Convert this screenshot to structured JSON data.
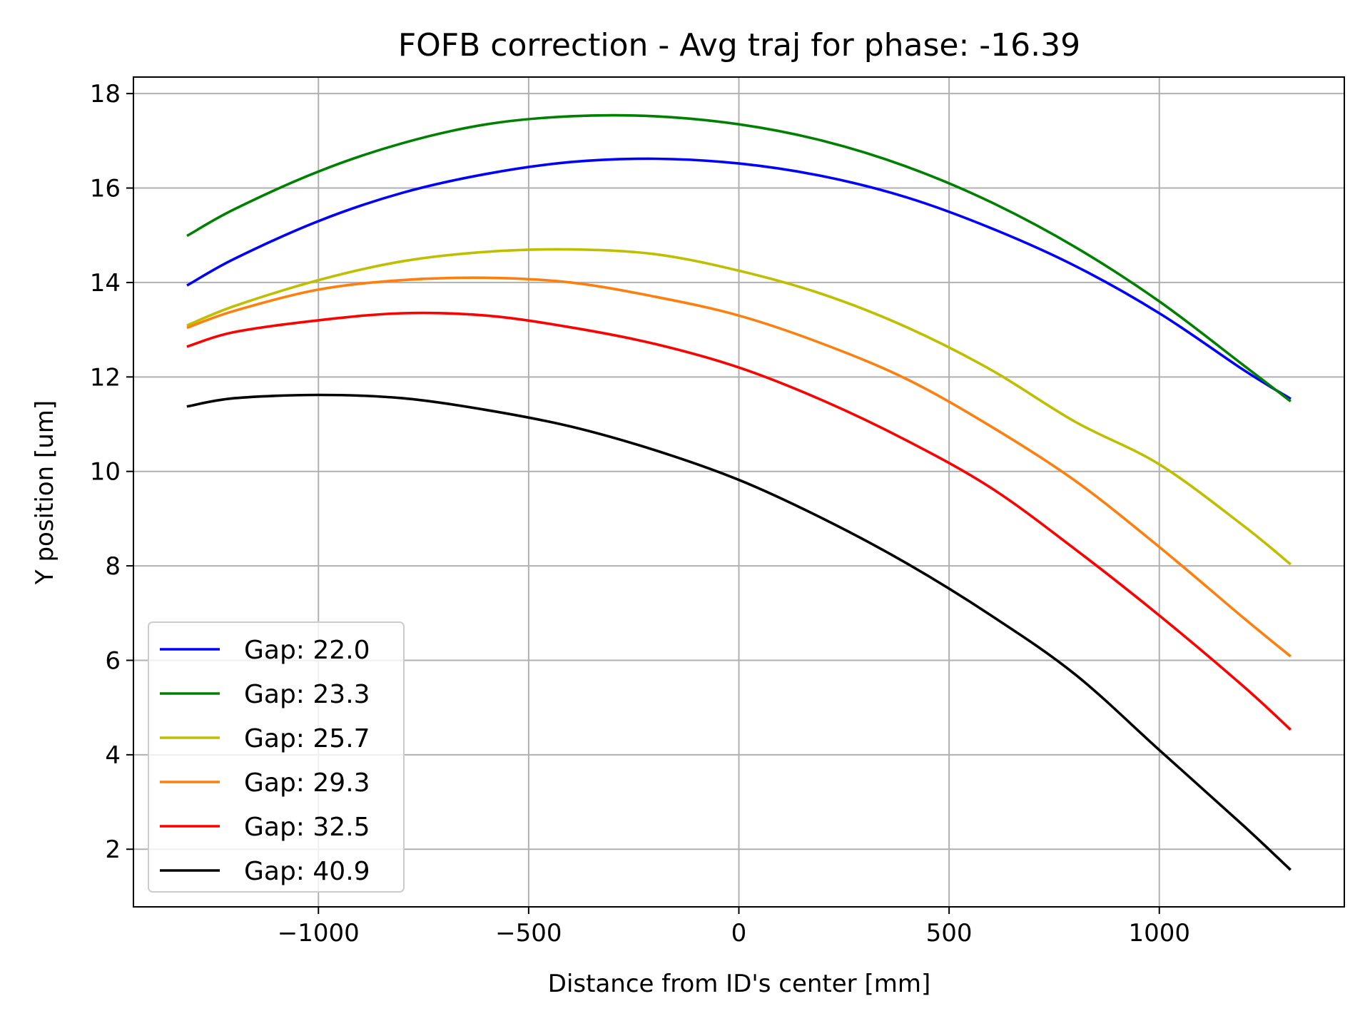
{
  "chart_data": {
    "type": "line",
    "title": "FOFB correction - Avg traj for phase: -16.39",
    "xlabel": "Distance from ID's center [mm]",
    "ylabel": "Y position [um]",
    "xlim": [
      -1440,
      1440
    ],
    "ylim": [
      0.78,
      18.35
    ],
    "xticks": [
      -1000,
      -500,
      0,
      500,
      1000
    ],
    "xtick_labels": [
      "−1000",
      "−500",
      "0",
      "500",
      "1000"
    ],
    "yticks": [
      2,
      4,
      6,
      8,
      10,
      12,
      14,
      16,
      18
    ],
    "ytick_labels": [
      "2",
      "4",
      "6",
      "8",
      "10",
      "12",
      "14",
      "16",
      "18"
    ],
    "grid": true,
    "legend_position": "lower-left",
    "x": [
      -1310,
      -1200,
      -1000,
      -800,
      -600,
      -400,
      -200,
      0,
      200,
      400,
      600,
      800,
      1000,
      1200,
      1310
    ],
    "series": [
      {
        "name": "Gap: 22.0",
        "color": "#0000ff",
        "values": [
          13.95,
          14.5,
          15.3,
          15.9,
          16.3,
          16.55,
          16.62,
          16.52,
          16.25,
          15.8,
          15.15,
          14.35,
          13.35,
          12.15,
          11.55
        ]
      },
      {
        "name": "Gap: 23.3",
        "color": "#008000",
        "values": [
          15.0,
          15.55,
          16.35,
          16.95,
          17.35,
          17.52,
          17.52,
          17.35,
          17.0,
          16.45,
          15.7,
          14.75,
          13.6,
          12.25,
          11.5
        ]
      },
      {
        "name": "Gap: 25.7",
        "color": "#bfbf00",
        "values": [
          13.1,
          13.5,
          14.05,
          14.45,
          14.65,
          14.7,
          14.6,
          14.25,
          13.75,
          13.05,
          12.15,
          11.05,
          10.15,
          8.85,
          8.05
        ]
      },
      {
        "name": "Gap: 29.3",
        "color": "#ff7f0e",
        "values": [
          13.05,
          13.4,
          13.85,
          14.05,
          14.1,
          14.0,
          13.7,
          13.3,
          12.7,
          11.95,
          10.95,
          9.8,
          8.4,
          6.9,
          6.1
        ]
      },
      {
        "name": "Gap: 32.5",
        "color": "#ff0000",
        "values": [
          12.65,
          12.95,
          13.2,
          13.35,
          13.3,
          13.05,
          12.7,
          12.2,
          11.5,
          10.65,
          9.65,
          8.35,
          6.95,
          5.45,
          4.55
        ]
      },
      {
        "name": "Gap: 40.9",
        "color": "#000000",
        "values": [
          11.38,
          11.55,
          11.62,
          11.55,
          11.3,
          10.95,
          10.45,
          9.82,
          9.0,
          8.05,
          6.95,
          5.7,
          4.1,
          2.5,
          1.58
        ]
      }
    ]
  }
}
